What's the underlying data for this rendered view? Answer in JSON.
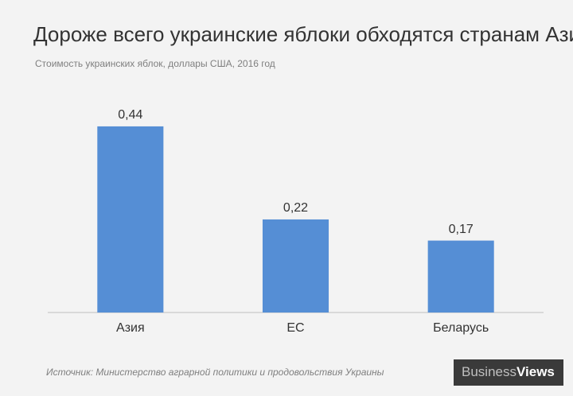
{
  "chart_data": {
    "type": "bar",
    "title": "Дороже всего украинские яблоки обходятся странам Азии",
    "subtitle": "Стоимость украинских яблок, доллары США, 2016 год",
    "categories": [
      "Азия",
      "ЕС",
      "Беларусь"
    ],
    "values": [
      0.44,
      0.22,
      0.17
    ],
    "value_labels": [
      "0,44",
      "0,22",
      "0,17"
    ],
    "color": "#558ed5",
    "ylim": [
      0,
      0.5
    ],
    "grid": false
  },
  "footer": {
    "source": "Источник: Министерство аграрной политики и продовольствия Украины",
    "logo": [
      "Business",
      "Views"
    ]
  }
}
